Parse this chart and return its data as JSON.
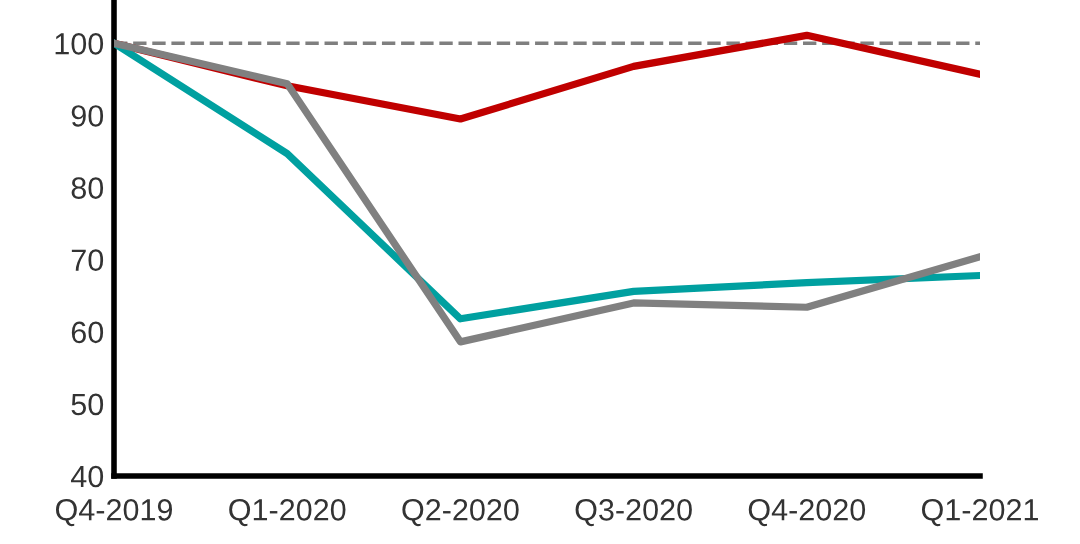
{
  "chart_data": {
    "type": "line",
    "categories": [
      "Q4-2019",
      "Q1-2020",
      "Q2-2020",
      "Q3-2020",
      "Q4-2020",
      "Q1-2021"
    ],
    "series": [
      {
        "color": "#c00000",
        "values": [
          100,
          94.1,
          89.5,
          96.8,
          101.1,
          95.7
        ]
      },
      {
        "color": "#00a0a0",
        "values": [
          100,
          84.7,
          61.8,
          65.6,
          66.8,
          67.8
        ]
      },
      {
        "color": "#808080",
        "values": [
          100,
          94.4,
          58.6,
          64.0,
          63.4,
          70.4
        ]
      }
    ],
    "ylim": [
      40,
      106
    ],
    "yticks": [
      40,
      50,
      60,
      70,
      80,
      90,
      100
    ],
    "grid": false,
    "legend": false,
    "marker": "none",
    "line_style": "solid",
    "ref_lines": [
      {
        "axis": "y",
        "value": 100,
        "color": "#7f7f7f",
        "line_style": "dashed"
      }
    ]
  }
}
